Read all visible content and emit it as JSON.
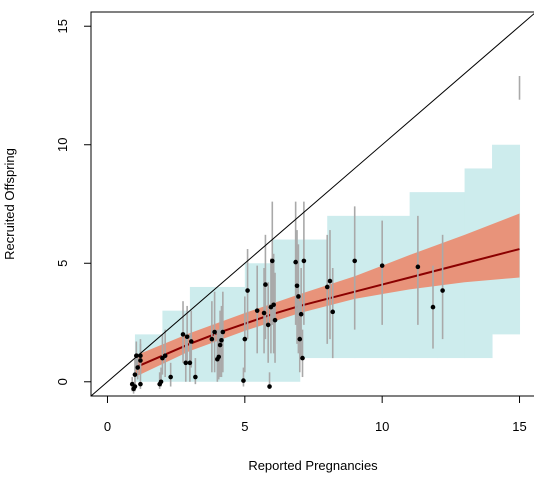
{
  "chart_data": {
    "type": "scatter",
    "title": "",
    "xlabel": "Reported Pregnancies",
    "ylabel": "Recruited Offspring",
    "xlim": [
      -0.6,
      15.6
    ],
    "ylim": [
      -0.6,
      15.6
    ],
    "x_ticks": [
      0,
      5,
      10,
      15
    ],
    "x_tick_labels": [
      "0",
      "5",
      "10",
      "15"
    ],
    "y_ticks": [
      0,
      5,
      10,
      15
    ],
    "y_tick_labels": [
      "0",
      "5",
      "10",
      "15"
    ],
    "grid": false,
    "legend": "none",
    "reference_line": {
      "slope": 1,
      "intercept": 0,
      "color": "#000000"
    },
    "prediction_band": {
      "color": "#cdeced",
      "steps": [
        {
          "x": [
            1,
            2
          ],
          "lower": 0,
          "upper": 2
        },
        {
          "x": [
            2,
            3
          ],
          "lower": 0,
          "upper": 3
        },
        {
          "x": [
            3,
            4
          ],
          "lower": 0,
          "upper": 4
        },
        {
          "x": [
            4,
            5
          ],
          "lower": 0,
          "upper": 4
        },
        {
          "x": [
            5,
            6
          ],
          "lower": 0,
          "upper": 5
        },
        {
          "x": [
            6,
            7
          ],
          "lower": 0,
          "upper": 6
        },
        {
          "x": [
            7,
            8
          ],
          "lower": 1,
          "upper": 6
        },
        {
          "x": [
            8,
            9
          ],
          "lower": 1,
          "upper": 7
        },
        {
          "x": [
            9,
            10
          ],
          "lower": 1,
          "upper": 7
        },
        {
          "x": [
            10,
            11
          ],
          "lower": 1,
          "upper": 7
        },
        {
          "x": [
            11,
            12
          ],
          "lower": 1,
          "upper": 8
        },
        {
          "x": [
            12,
            13
          ],
          "lower": 1,
          "upper": 8
        },
        {
          "x": [
            13,
            14
          ],
          "lower": 1,
          "upper": 9
        },
        {
          "x": [
            14,
            15
          ],
          "lower": 2,
          "upper": 10
        }
      ]
    },
    "confidence_band": {
      "color": "#e8937a",
      "x": [
        1,
        3,
        5,
        7,
        9,
        11,
        13,
        15
      ],
      "lower": [
        0.2,
        1.3,
        2.15,
        2.9,
        3.5,
        3.9,
        4.2,
        4.4
      ],
      "upper": [
        1.1,
        2.05,
        2.9,
        3.7,
        4.45,
        5.35,
        6.2,
        7.1
      ]
    },
    "fit_line": {
      "color": "#8b0000",
      "x": [
        1,
        2,
        3,
        4,
        5,
        6,
        7,
        8,
        9,
        10,
        11,
        12,
        13,
        15
      ],
      "y": [
        0.6,
        1.1,
        1.6,
        2.05,
        2.45,
        2.85,
        3.2,
        3.5,
        3.8,
        4.1,
        4.4,
        4.7,
        5.0,
        5.6
      ]
    },
    "points": {
      "color": "#000000",
      "error_bar_color": "#a9a9a9",
      "x": [
        0.9,
        0.95,
        1.0,
        1.05,
        1.0,
        1.1,
        1.2,
        1.2,
        1.2,
        1.9,
        2.0,
        1.95,
        2.1,
        2.3,
        2.75,
        2.85,
        2.9,
        3.0,
        3.05,
        3.2,
        3.8,
        3.9,
        4.0,
        4.05,
        4.1,
        4.15,
        4.2,
        4.95,
        5.0,
        5.1,
        5.45,
        5.7,
        5.75,
        5.85,
        5.9,
        5.95,
        6.0,
        6.05,
        6.1,
        6.85,
        6.9,
        6.95,
        7.0,
        7.05,
        7.1,
        7.15,
        8.0,
        8.1,
        8.2,
        9.0,
        10.0,
        11.3,
        11.85,
        12.2
      ],
      "y": [
        -0.1,
        -0.3,
        0.3,
        1.1,
        -0.2,
        0.6,
        0.9,
        1.1,
        -0.1,
        -0.1,
        1.0,
        0.0,
        1.1,
        0.2,
        2.0,
        0.8,
        1.9,
        0.8,
        1.7,
        0.2,
        1.8,
        2.1,
        0.95,
        1.05,
        1.55,
        1.75,
        2.1,
        0.05,
        1.8,
        3.85,
        3.0,
        2.9,
        4.1,
        2.4,
        -0.2,
        3.15,
        5.1,
        3.25,
        2.6,
        5.05,
        4.05,
        3.6,
        1.8,
        2.85,
        1.0,
        5.1,
        4.0,
        4.25,
        2.95,
        5.1,
        4.9,
        4.85,
        3.15,
        3.85
      ],
      "lower": [
        -0.4,
        -0.5,
        -0.2,
        0.5,
        -0.4,
        0.1,
        0.3,
        0.5,
        -0.3,
        -0.3,
        0.3,
        -0.2,
        0.2,
        -0.2,
        0.8,
        0.0,
        0.8,
        0.0,
        0.6,
        -0.1,
        0.4,
        0.4,
        0.0,
        0.1,
        0.2,
        0.2,
        0.4,
        -0.2,
        0.4,
        1.8,
        1.2,
        1.2,
        1.8,
        0.8,
        -0.3,
        1.2,
        2.4,
        1.2,
        0.8,
        2.4,
        1.6,
        1.2,
        0.4,
        1.0,
        0.2,
        2.4,
        1.6,
        1.8,
        1.0,
        2.2,
        2.4,
        2.4,
        1.4,
        1.8
      ],
      "upper": [
        0.2,
        0.0,
        1.0,
        1.7,
        0.2,
        1.2,
        1.6,
        1.8,
        0.4,
        0.4,
        2.0,
        0.6,
        2.2,
        0.8,
        3.4,
        2.0,
        3.2,
        2.0,
        3.0,
        1.0,
        3.4,
        3.8,
        2.2,
        2.2,
        3.0,
        3.2,
        3.8,
        0.6,
        3.6,
        5.6,
        4.9,
        4.8,
        6.2,
        4.2,
        0.4,
        5.2,
        7.6,
        5.4,
        4.6,
        7.6,
        6.4,
        5.8,
        3.4,
        4.8,
        2.2,
        7.6,
        6.2,
        6.4,
        4.8,
        7.4,
        6.8,
        7.0,
        4.9,
        6.2
      ],
      "outlier": {
        "x": 15.0,
        "lower": 11.9,
        "upper": 12.9
      }
    }
  }
}
